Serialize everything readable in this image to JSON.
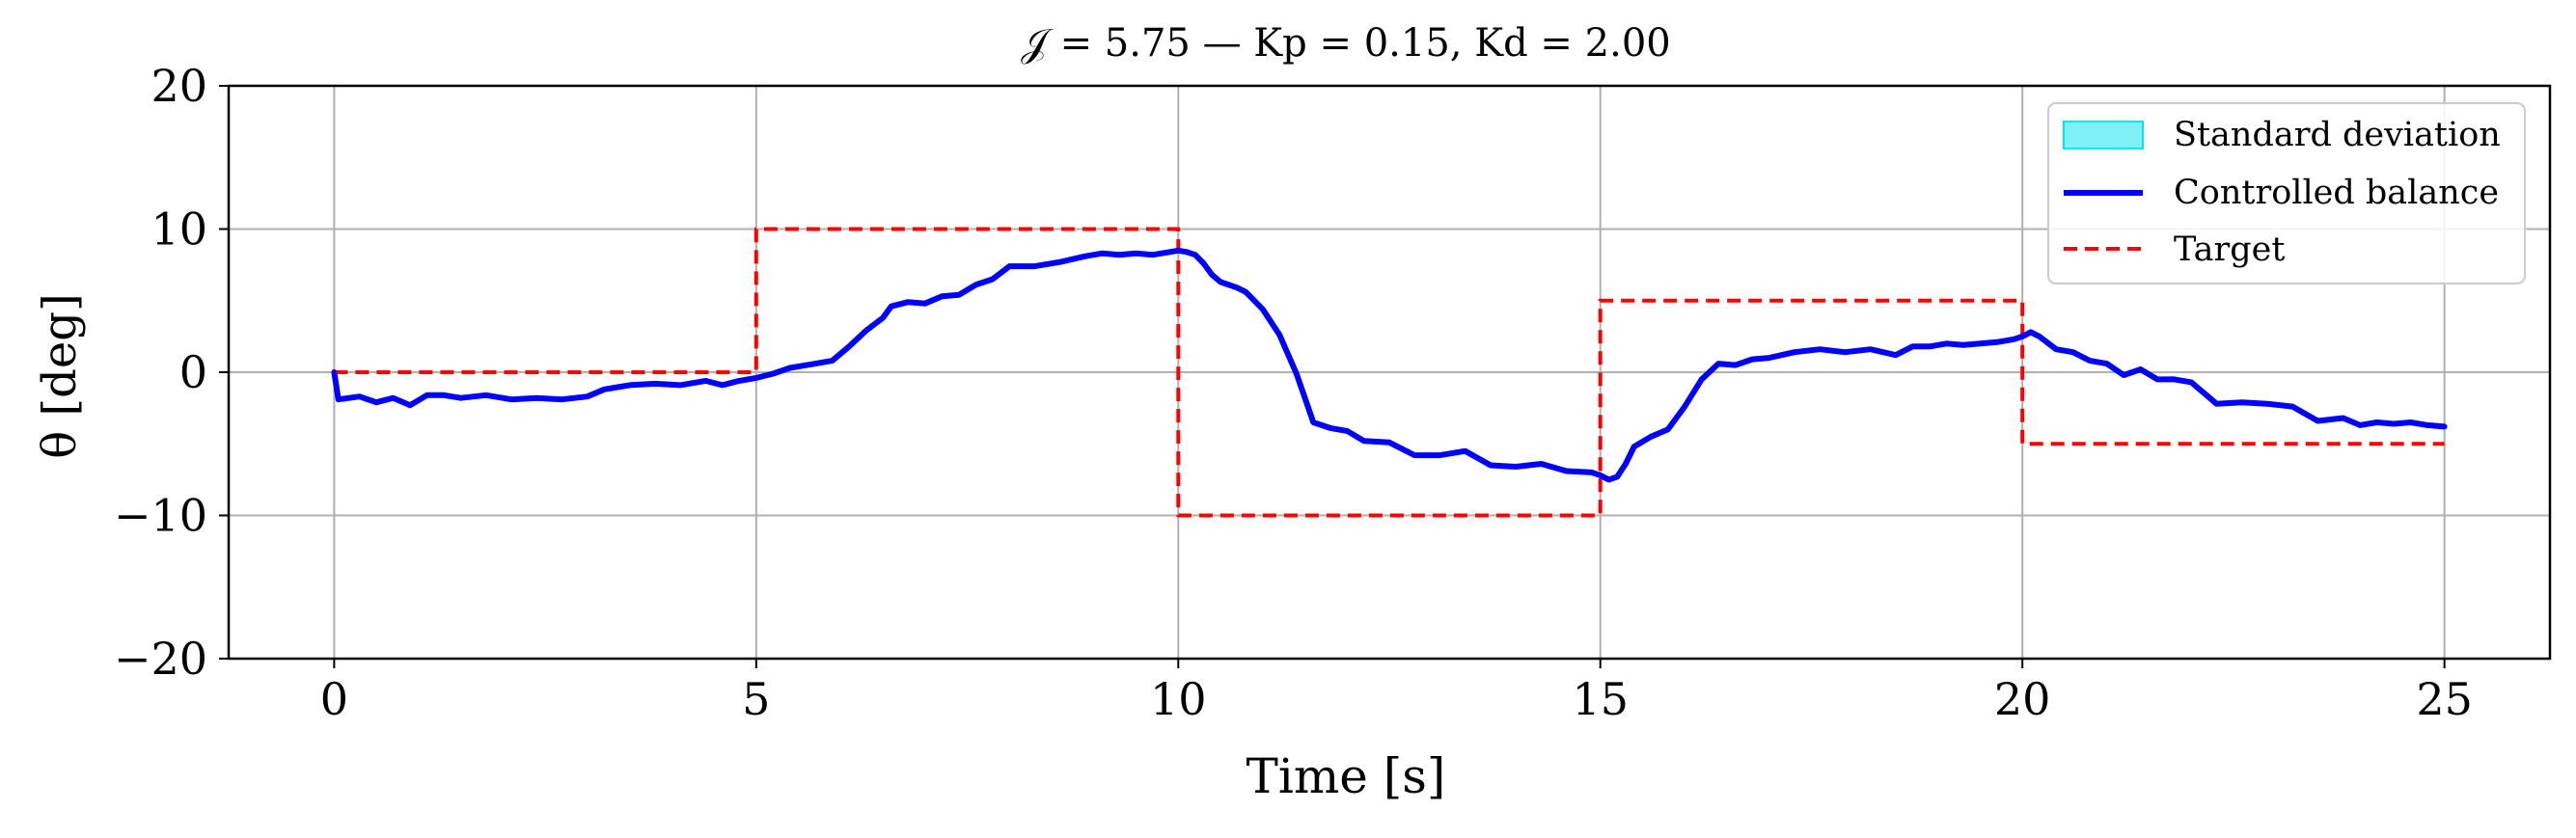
{
  "chart_data": {
    "type": "line",
    "title": "𝒥 = 5.75 — Kp = 0.15, Kd = 2.00",
    "xlabel": "Time [s]",
    "ylabel": "θ [deg]",
    "xlim": [
      -1.25,
      26.25
    ],
    "ylim": [
      -20,
      20
    ],
    "xticks": [
      0,
      5,
      10,
      15,
      20,
      25
    ],
    "yticks": [
      -20,
      -10,
      0,
      10,
      20
    ],
    "xtick_labels": [
      "0",
      "5",
      "10",
      "15",
      "20",
      "25"
    ],
    "ytick_labels": [
      "−20",
      "−10",
      "0",
      "10",
      "20"
    ],
    "grid": true,
    "legend_position": "top-right",
    "legend": [
      {
        "label": "Standard deviation",
        "kind": "patch",
        "color": "#7ff0f5"
      },
      {
        "label": "Controlled balance",
        "kind": "line",
        "color": "#0000ff"
      },
      {
        "label": "Target",
        "kind": "dashed",
        "color": "#ff0000"
      }
    ],
    "series": [
      {
        "name": "Controlled balance",
        "color": "#0000ff",
        "x": [
          0,
          0.05,
          0.3,
          0.5,
          0.7,
          0.9,
          1.1,
          1.3,
          1.5,
          1.8,
          2.1,
          2.4,
          2.7,
          3.0,
          3.2,
          3.5,
          3.8,
          4.1,
          4.4,
          4.6,
          4.8,
          5.0,
          5.2,
          5.4,
          5.6,
          5.9,
          6.1,
          6.3,
          6.5,
          6.6,
          6.8,
          7.0,
          7.2,
          7.4,
          7.6,
          7.8,
          8.0,
          8.3,
          8.6,
          8.9,
          9.1,
          9.3,
          9.5,
          9.7,
          9.9,
          10.0,
          10.1,
          10.2,
          10.3,
          10.4,
          10.5,
          10.6,
          10.7,
          10.8,
          11.0,
          11.2,
          11.4,
          11.6,
          11.8,
          12.0,
          12.2,
          12.5,
          12.8,
          13.1,
          13.4,
          13.7,
          14.0,
          14.3,
          14.6,
          14.9,
          15.0,
          15.1,
          15.2,
          15.3,
          15.4,
          15.6,
          15.8,
          16.0,
          16.2,
          16.4,
          16.6,
          16.8,
          17.0,
          17.3,
          17.6,
          17.9,
          18.2,
          18.5,
          18.7,
          18.9,
          19.1,
          19.3,
          19.5,
          19.7,
          19.9,
          20.0,
          20.1,
          20.2,
          20.4,
          20.6,
          20.8,
          21.0,
          21.2,
          21.4,
          21.6,
          21.8,
          22.0,
          22.3,
          22.6,
          22.9,
          23.2,
          23.5,
          23.8,
          24.0,
          24.2,
          24.4,
          24.6,
          24.8,
          25.0
        ],
        "y": [
          0,
          -1.9,
          -1.7,
          -2.1,
          -1.8,
          -2.3,
          -1.6,
          -1.6,
          -1.8,
          -1.6,
          -1.9,
          -1.8,
          -1.9,
          -1.7,
          -1.2,
          -0.9,
          -0.8,
          -0.9,
          -0.6,
          -0.9,
          -0.6,
          -0.4,
          -0.1,
          0.3,
          0.5,
          0.8,
          1.8,
          2.9,
          3.8,
          4.6,
          4.9,
          4.8,
          5.3,
          5.4,
          6.1,
          6.5,
          7.4,
          7.4,
          7.7,
          8.1,
          8.3,
          8.2,
          8.3,
          8.2,
          8.4,
          8.5,
          8.4,
          8.2,
          7.6,
          6.8,
          6.3,
          6.1,
          5.9,
          5.6,
          4.4,
          2.6,
          -0.1,
          -3.5,
          -3.9,
          -4.1,
          -4.8,
          -4.9,
          -5.8,
          -5.8,
          -5.5,
          -6.5,
          -6.6,
          -6.4,
          -6.9,
          -7.0,
          -7.2,
          -7.5,
          -7.3,
          -6.4,
          -5.2,
          -4.5,
          -4.0,
          -2.4,
          -0.5,
          0.6,
          0.5,
          0.9,
          1.0,
          1.4,
          1.6,
          1.4,
          1.6,
          1.2,
          1.8,
          1.8,
          2.0,
          1.9,
          2.0,
          2.1,
          2.3,
          2.5,
          2.8,
          2.5,
          1.6,
          1.4,
          0.8,
          0.6,
          -0.2,
          0.2,
          -0.5,
          -0.5,
          -0.7,
          -2.2,
          -2.1,
          -2.2,
          -2.4,
          -3.4,
          -3.2,
          -3.7,
          -3.5,
          -3.6,
          -3.5,
          -3.7,
          -3.8
        ]
      },
      {
        "name": "Target",
        "color": "#ff0000",
        "x": [
          0,
          5,
          5,
          10,
          10,
          15,
          15,
          20,
          20,
          25
        ],
        "y": [
          0,
          0,
          10,
          10,
          -10,
          -10,
          5,
          5,
          -5,
          -5
        ]
      }
    ]
  }
}
